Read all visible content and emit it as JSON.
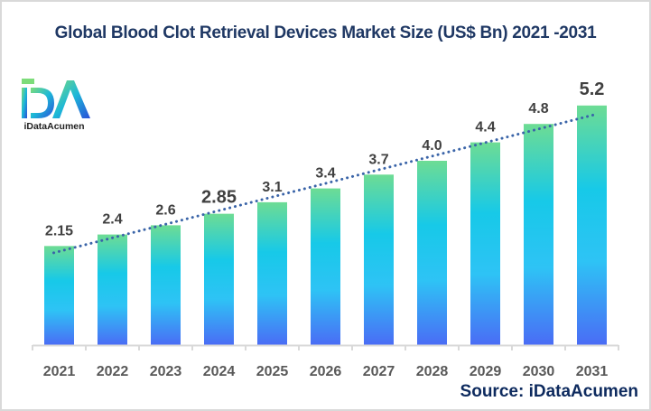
{
  "chart_data": {
    "type": "bar",
    "title": "Global Blood Clot Retrieval Devices Market Size (US$ Bn) 2021 -2031",
    "xlabel": "",
    "ylabel": "",
    "categories": [
      "2021",
      "2022",
      "2023",
      "2024",
      "2025",
      "2026",
      "2027",
      "2028",
      "2029",
      "2030",
      "2031"
    ],
    "values": [
      2.15,
      2.4,
      2.6,
      2.85,
      3.1,
      3.4,
      3.7,
      4.0,
      4.4,
      4.8,
      5.2
    ],
    "data_labels": [
      "2.15",
      "2.4",
      "2.6",
      "2.85",
      "3.1",
      "3.4",
      "3.7",
      "4.0",
      "4.4",
      "4.8",
      "5.2"
    ],
    "ylim": [
      0,
      5.6
    ],
    "grid": false,
    "legend": "none",
    "trendline": {
      "type": "linear",
      "style": "dotted",
      "color": "#3a64a8"
    },
    "bar_gradient": [
      "#6ddc94",
      "#17c9e8",
      "#2ec3f5",
      "#4a6cf5"
    ]
  },
  "logo": {
    "text": "iDataAcumen",
    "letters": "iDA"
  },
  "source": "Source: iDataAcumen"
}
